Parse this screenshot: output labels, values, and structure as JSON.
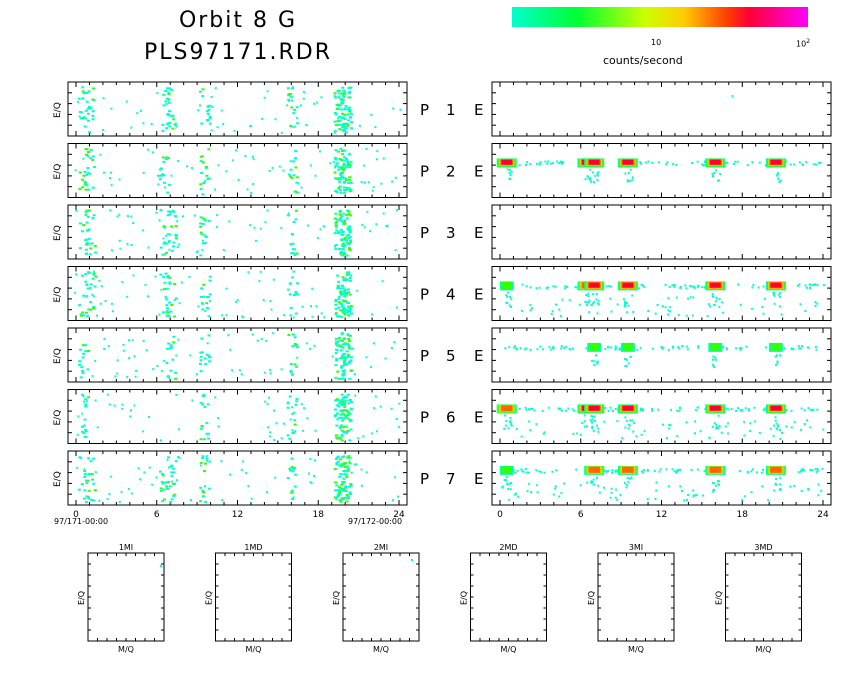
{
  "header": {
    "title": "Orbit 8 G",
    "subtitle": "PLS97171.RDR"
  },
  "colorbar": {
    "label": "counts/second",
    "tick_10": "10",
    "tick_100_base": "10",
    "tick_100_exp": "2",
    "colors": [
      "#00ffcc",
      "#00ff66",
      "#33ff00",
      "#ccff00",
      "#ffcc00",
      "#ff6600",
      "#ff0033",
      "#ff00aa",
      "#ff00ff"
    ]
  },
  "rows": [
    {
      "left_label": "P",
      "num": "1",
      "right_label": "E"
    },
    {
      "left_label": "P",
      "num": "2",
      "right_label": "E"
    },
    {
      "left_label": "P",
      "num": "3",
      "right_label": "E"
    },
    {
      "left_label": "P",
      "num": "4",
      "right_label": "E"
    },
    {
      "left_label": "P",
      "num": "5",
      "right_label": "E"
    },
    {
      "left_label": "P",
      "num": "6",
      "right_label": "E"
    },
    {
      "left_label": "P",
      "num": "7",
      "right_label": "E"
    }
  ],
  "axis": {
    "ylabel": "E/Q",
    "xticks": [
      "0",
      "6",
      "12",
      "18",
      "24"
    ],
    "start_date": "97/171-00:00",
    "end_date": "97/172-00:00"
  },
  "bottom_panels": [
    {
      "title": "1MI",
      "ylabel": "E/Q",
      "xlabel": "M/Q"
    },
    {
      "title": "1MD",
      "ylabel": "E/Q",
      "xlabel": "M/Q"
    },
    {
      "title": "2MI",
      "ylabel": "E/Q",
      "xlabel": "M/Q"
    },
    {
      "title": "2MD",
      "ylabel": "E/Q",
      "xlabel": "M/Q"
    },
    {
      "title": "3MI",
      "ylabel": "E/Q",
      "xlabel": "M/Q"
    },
    {
      "title": "3MD",
      "ylabel": "E/Q",
      "xlabel": "M/Q"
    }
  ],
  "chart_data": {
    "type": "heatmap",
    "xlim": [
      0,
      24
    ],
    "x_unit": "hours",
    "color_scale": "log",
    "color_range": [
      1,
      100
    ],
    "left_activity_hours": [
      [
        0.5,
        1,
        6.5,
        7,
        9.5,
        16,
        19.5,
        20
      ],
      [
        0.5,
        1,
        6.5,
        9.5,
        16,
        19.5,
        20
      ],
      [
        0.5,
        1,
        6.5,
        7,
        9.5,
        16,
        19.5,
        20
      ],
      [
        0.5,
        1,
        6.5,
        7,
        9.5,
        16,
        19.5,
        20
      ],
      [
        0.5,
        7,
        9.5,
        16,
        19.5,
        20
      ],
      [
        0.5,
        9.5,
        16,
        19.5,
        20
      ],
      [
        0.5,
        1,
        6.5,
        7,
        9.5,
        16,
        19.5,
        20
      ]
    ],
    "right_hotspots": [
      [],
      [
        {
          "x": 0.5,
          "level": "high"
        },
        {
          "x": 6.5,
          "level": "high"
        },
        {
          "x": 7,
          "level": "high"
        },
        {
          "x": 9.5,
          "level": "high"
        },
        {
          "x": 16,
          "level": "high"
        },
        {
          "x": 20.5,
          "level": "high"
        }
      ],
      [],
      [
        {
          "x": 0.5,
          "level": "low"
        },
        {
          "x": 6.5,
          "level": "med"
        },
        {
          "x": 7,
          "level": "high"
        },
        {
          "x": 9.5,
          "level": "high"
        },
        {
          "x": 16,
          "level": "high"
        },
        {
          "x": 20.5,
          "level": "high"
        }
      ],
      [
        {
          "x": 7,
          "level": "low"
        },
        {
          "x": 9.5,
          "level": "low"
        },
        {
          "x": 16,
          "level": "low"
        },
        {
          "x": 20.5,
          "level": "low"
        }
      ],
      [
        {
          "x": 0.5,
          "level": "med"
        },
        {
          "x": 6.5,
          "level": "high"
        },
        {
          "x": 7,
          "level": "high"
        },
        {
          "x": 9.5,
          "level": "high"
        },
        {
          "x": 16,
          "level": "high"
        },
        {
          "x": 20.5,
          "level": "high"
        }
      ],
      [
        {
          "x": 0.5,
          "level": "low"
        },
        {
          "x": 7,
          "level": "med"
        },
        {
          "x": 9.5,
          "level": "med"
        },
        {
          "x": 16,
          "level": "med"
        },
        {
          "x": 20.5,
          "level": "med"
        }
      ]
    ]
  }
}
